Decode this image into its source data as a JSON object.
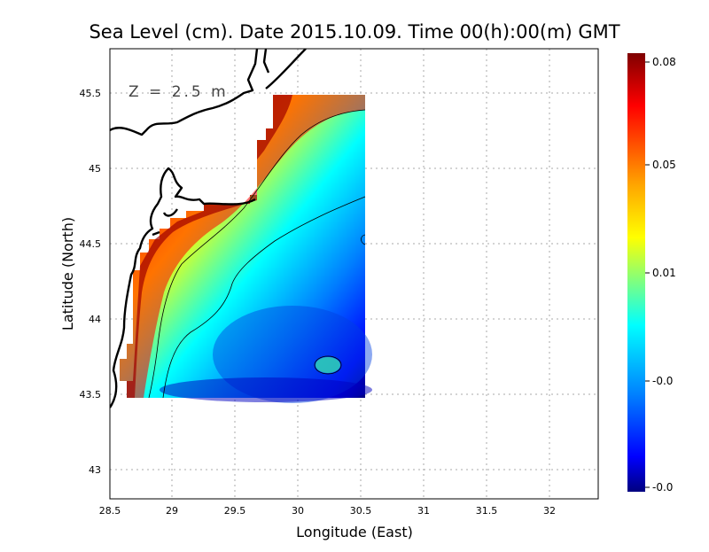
{
  "title": "Sea Level (cm). Date 2015.10.09. Time 00(h):00(m) GMT",
  "annotation": "Z = 2.5 m",
  "xlabel": "Longitude (East)",
  "ylabel": "Latitude (North)",
  "x_ticks": [
    "28.5",
    "29",
    "29.5",
    "30",
    "30.5",
    "31",
    "31.5",
    "32"
  ],
  "y_ticks": [
    "43",
    "43.5",
    "44",
    "44.5",
    "45",
    "45.5"
  ],
  "colorbar": {
    "ticks": [
      "0.08",
      "0.05",
      "0.01",
      "-0.0",
      "-0.0"
    ],
    "colors": [
      "#7f0000",
      "#ff0000",
      "#ffa500",
      "#ffff00",
      "#7fff7f",
      "#00ffff",
      "#007fff",
      "#0000ff",
      "#00007f"
    ]
  },
  "chart_data": {
    "type": "heatmap",
    "title": "Sea Level (cm). Date 2015.10.09. Time 00(h):00(m) GMT",
    "xlabel": "Longitude (East)",
    "ylabel": "Latitude (North)",
    "xlim": [
      28.5,
      32.4
    ],
    "ylim": [
      42.8,
      45.8
    ],
    "grid": true,
    "data_extent": {
      "lon": [
        28.6,
        30.55
      ],
      "lat": [
        43.48,
        45.5
      ]
    },
    "colorbar_labels": [
      "0.08",
      "0.05",
      "0.01",
      "-0.0",
      "-0.0"
    ]
  }
}
